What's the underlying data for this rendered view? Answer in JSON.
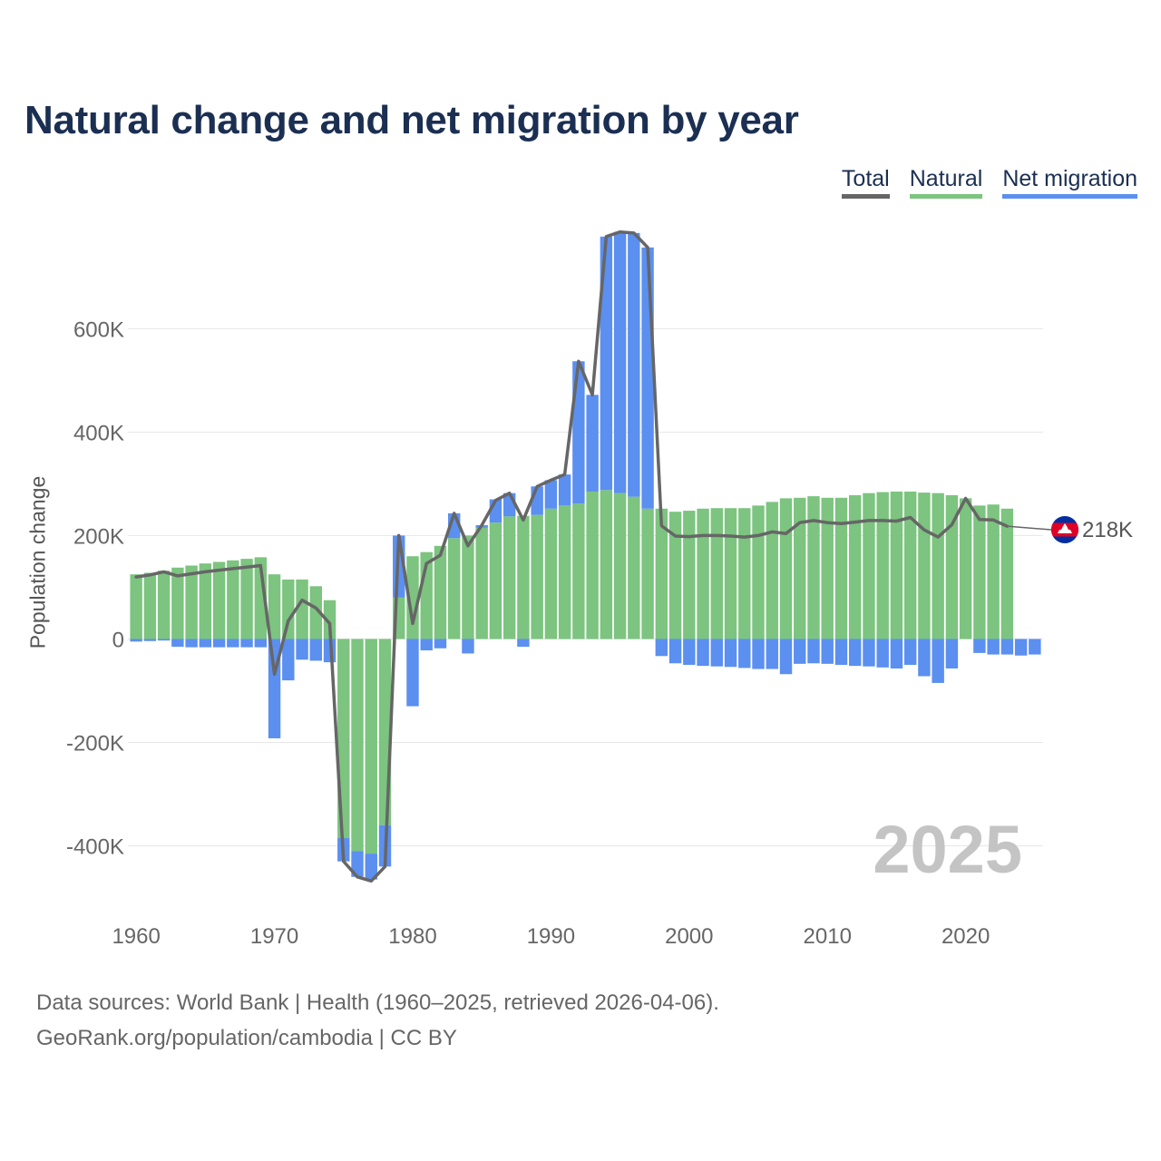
{
  "colors": {
    "total": "#666666",
    "natural": "#7cc47f",
    "net_migration": "#5b8ff0",
    "title": "#1b2f52",
    "grid": "#e6e6e6"
  },
  "chart_data": {
    "type": "bar",
    "title": "Natural change and net migration by year",
    "ylabel": "Population change",
    "xlabel": "",
    "legend": {
      "total": "Total",
      "natural": "Natural",
      "net_migration": "Net migration"
    },
    "legend_position": "top-right",
    "ylim": [
      -520000,
      790000
    ],
    "xlim": [
      1959.4,
      2025.6
    ],
    "yticks": [
      -400000,
      -200000,
      0,
      200000,
      400000,
      600000
    ],
    "ytick_labels": [
      "-400K",
      "-200K",
      "0",
      "200K",
      "400K",
      "600K"
    ],
    "xticks": [
      1960,
      1970,
      1980,
      1990,
      2000,
      2010,
      2020
    ],
    "xtick_labels": [
      "1960",
      "1970",
      "1980",
      "1990",
      "2000",
      "2010",
      "2020"
    ],
    "year_watermark": "2025",
    "end_label": "218K",
    "years": [
      1960,
      1961,
      1962,
      1963,
      1964,
      1965,
      1966,
      1967,
      1968,
      1969,
      1970,
      1971,
      1972,
      1973,
      1974,
      1975,
      1976,
      1977,
      1978,
      1979,
      1980,
      1981,
      1982,
      1983,
      1984,
      1985,
      1986,
      1987,
      1988,
      1989,
      1990,
      1991,
      1992,
      1993,
      1994,
      1995,
      1996,
      1997,
      1998,
      1999,
      2000,
      2001,
      2002,
      2003,
      2004,
      2005,
      2006,
      2007,
      2008,
      2009,
      2010,
      2011,
      2012,
      2013,
      2014,
      2015,
      2016,
      2017,
      2018,
      2019,
      2020,
      2021,
      2022,
      2023,
      2024,
      2025
    ],
    "series": [
      {
        "name": "Natural",
        "values": [
          125000,
          128000,
          132000,
          138000,
          142000,
          146000,
          149000,
          152000,
          155000,
          158000,
          125000,
          115000,
          115000,
          102000,
          75000,
          -385000,
          -410000,
          -415000,
          -360000,
          80000,
          160000,
          168000,
          180000,
          195000,
          200000,
          215000,
          225000,
          237000,
          238000,
          240000,
          252000,
          258000,
          262000,
          285000,
          288000,
          282000,
          275000,
          252000,
          252000,
          246000,
          248000,
          252000,
          253000,
          253000,
          253000,
          258000,
          265000,
          272000,
          273000,
          276000,
          273000,
          273000,
          278000,
          282000,
          284000,
          285000,
          285000,
          283000,
          282000,
          278000,
          272000,
          258000,
          260000,
          252000,
          null,
          null
        ]
      },
      {
        "name": "Net migration",
        "values": [
          -5000,
          -4000,
          -3000,
          -15000,
          -16000,
          -16000,
          -16000,
          -16000,
          -16000,
          -16000,
          -192000,
          -80000,
          -40000,
          -42000,
          -45000,
          -45000,
          -50000,
          -50000,
          -80000,
          120000,
          -130000,
          -22000,
          -18000,
          48000,
          -28000,
          5000,
          45000,
          45000,
          -15000,
          55000,
          55000,
          60000,
          275000,
          187000,
          490000,
          505000,
          510000,
          505000,
          -33000,
          -47000,
          -50000,
          -52000,
          -53000,
          -54000,
          -56000,
          -58000,
          -58000,
          -68000,
          -48000,
          -47000,
          -48000,
          -50000,
          -52000,
          -53000,
          -55000,
          -57000,
          -50000,
          -72000,
          -85000,
          -57000,
          0,
          -27000,
          -30000,
          -30000,
          -32000,
          -30000
        ]
      },
      {
        "name": "Total",
        "values": [
          120000,
          124000,
          130000,
          122000,
          126000,
          130000,
          133000,
          136000,
          139000,
          142000,
          -68000,
          35000,
          75000,
          60000,
          30000,
          -430000,
          -460000,
          -468000,
          -440000,
          200000,
          30000,
          146000,
          162000,
          243000,
          180000,
          220000,
          268000,
          282000,
          230000,
          295000,
          307000,
          318000,
          537000,
          472000,
          778000,
          787000,
          785000,
          757000,
          219000,
          199000,
          198000,
          200000,
          200000,
          199000,
          197000,
          200000,
          207000,
          204000,
          225000,
          229000,
          225000,
          223000,
          226000,
          229000,
          229000,
          228000,
          235000,
          211000,
          197000,
          221000,
          272000,
          231000,
          230000,
          218000,
          null,
          null
        ]
      }
    ]
  },
  "footer": {
    "line1": "Data sources: World Bank | Health (1960–2025, retrieved 2026-04-06).",
    "line2": "GeoRank.org/population/cambodia | CC BY"
  }
}
